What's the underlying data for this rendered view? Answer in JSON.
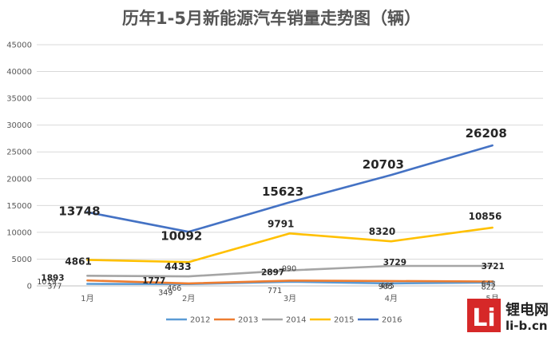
{
  "chart_data": {
    "type": "line",
    "title": "历年1-5月新能源汽车销量走势图（辆）",
    "categories": [
      "1月",
      "2月",
      "3月",
      "4月",
      "5月"
    ],
    "ylim": [
      0,
      45000
    ],
    "yticks": [
      0,
      5000,
      10000,
      15000,
      20000,
      25000,
      30000,
      35000,
      40000,
      45000
    ],
    "grid": true,
    "legend_position": "bottom",
    "series": [
      {
        "name": "2012",
        "color": "#5B9BD5",
        "values": [
          377,
          349,
          771,
          465,
          643
        ],
        "labels": [
          "377",
          "349",
          "771",
          "465",
          "643"
        ]
      },
      {
        "name": "2013",
        "color": "#ED7D31",
        "values": [
          1019,
          466,
          990,
          905,
          822
        ],
        "labels": [
          "1019",
          "466",
          "990",
          "905",
          "822"
        ]
      },
      {
        "name": "2014",
        "color": "#A5A5A5",
        "values": [
          1893,
          1777,
          2897,
          3729,
          3721
        ],
        "labels": [
          "1893",
          "1777",
          "2897",
          "3729",
          "3721"
        ]
      },
      {
        "name": "2015",
        "color": "#FFC000",
        "values": [
          4861,
          4433,
          9791,
          8320,
          10856
        ],
        "labels": [
          "4861",
          "4433",
          "9791",
          "8320",
          "10856"
        ]
      },
      {
        "name": "2016",
        "color": "#4472C4",
        "values": [
          13748,
          10092,
          15623,
          20703,
          26208
        ],
        "labels": [
          "13748",
          "10092",
          "15623",
          "20703",
          "26208"
        ]
      }
    ]
  },
  "watermark": {
    "logo_letters": "Li",
    "brand": "锂电网",
    "domain": "li-b.cn"
  }
}
